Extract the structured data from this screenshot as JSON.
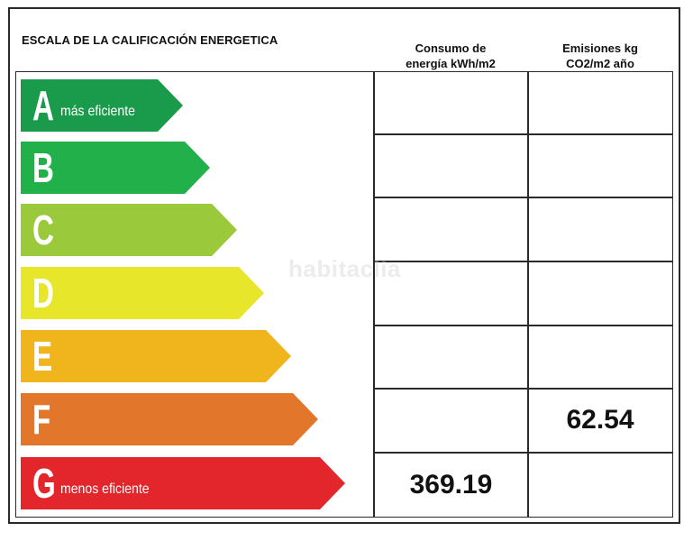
{
  "title": "ESCALA DE LA CALIFICACIÓN ENERGETICA",
  "columns": {
    "consumo": [
      "Consumo de",
      "energía kWh/m2"
    ],
    "emisiones": [
      "Emisiones kg",
      "CO2/m2 año"
    ]
  },
  "ratings": [
    {
      "letter": "A",
      "sublabel": "más eficiente",
      "color": "#1a9a4b"
    },
    {
      "letter": "B",
      "sublabel": "",
      "color": "#22b04a"
    },
    {
      "letter": "C",
      "sublabel": "",
      "color": "#9ac93b"
    },
    {
      "letter": "D",
      "sublabel": "",
      "color": "#e8e62a"
    },
    {
      "letter": "E",
      "sublabel": "",
      "color": "#f0b41d"
    },
    {
      "letter": "F",
      "sublabel": "",
      "color": "#e2762a"
    },
    {
      "letter": "G",
      "sublabel": "menos eficiente",
      "color": "#e3262b"
    }
  ],
  "values": {
    "consumo": {
      "rating": "G",
      "value": "369.19"
    },
    "emisiones": {
      "rating": "F",
      "value": "62.54"
    }
  },
  "watermark": "habitaclia"
}
